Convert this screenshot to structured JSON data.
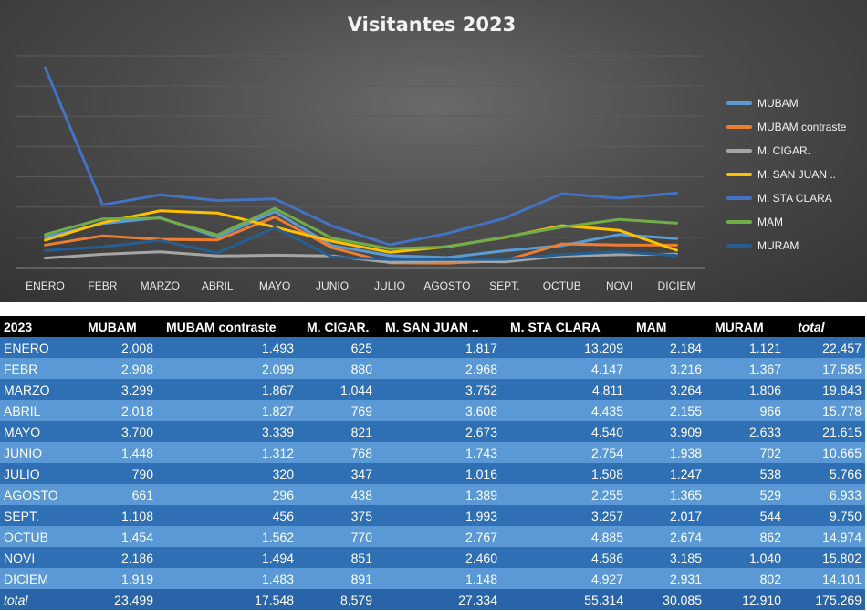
{
  "chart_data": {
    "type": "line",
    "title": "Visitantes 2023",
    "categories": [
      "ENERO",
      "FEBR",
      "MARZO",
      "ABRIL",
      "MAYO",
      "JUNIO",
      "JULIO",
      "AGOSTO",
      "SEPT.",
      "OCTUB",
      "NOVI",
      "DICIEM"
    ],
    "ylim": [
      0,
      14000
    ],
    "grid": true,
    "legend_position": "right",
    "series": [
      {
        "name": "MUBAM",
        "color": "#5b9bd5",
        "values": [
          2008,
          2908,
          3299,
          2018,
          3700,
          1448,
          790,
          661,
          1108,
          1454,
          2186,
          1919
        ]
      },
      {
        "name": "MUBAM contraste",
        "color": "#ed7d31",
        "values": [
          1493,
          2099,
          1867,
          1827,
          3339,
          1312,
          320,
          296,
          456,
          1562,
          1494,
          1483
        ]
      },
      {
        "name": "M. CIGAR.",
        "color": "#a5a5a5",
        "values": [
          625,
          880,
          1044,
          769,
          821,
          768,
          347,
          438,
          375,
          770,
          851,
          891
        ]
      },
      {
        "name": "M. SAN JUAN ..",
        "color": "#ffc000",
        "values": [
          1817,
          2968,
          3752,
          3608,
          2673,
          1743,
          1016,
          1389,
          1993,
          2767,
          2460,
          1148
        ]
      },
      {
        "name": "M. STA CLARA",
        "color": "#4472c4",
        "values": [
          13209,
          4147,
          4811,
          4435,
          4540,
          2754,
          1508,
          2255,
          3257,
          4885,
          4586,
          4927
        ]
      },
      {
        "name": "MAM",
        "color": "#70ad47",
        "values": [
          2184,
          3216,
          3264,
          2155,
          3909,
          1938,
          1247,
          1365,
          2017,
          2674,
          3185,
          2931
        ]
      },
      {
        "name": "MURAM",
        "color": "#255e91",
        "values": [
          1121,
          1367,
          1806,
          966,
          2633,
          702,
          538,
          529,
          544,
          862,
          1040,
          802
        ]
      }
    ]
  },
  "table": {
    "headers": [
      "2023",
      "MUBAM",
      "MUBAM contraste",
      "M. CIGAR.",
      "M. SAN JUAN ..",
      "M. STA CLARA",
      "MAM",
      "MURAM",
      "total"
    ],
    "rows": [
      [
        "ENERO",
        "2.008",
        "1.493",
        "625",
        "1.817",
        "13.209",
        "2.184",
        "1.121",
        "22.457"
      ],
      [
        "FEBR",
        "2.908",
        "2.099",
        "880",
        "2.968",
        "4.147",
        "3.216",
        "1.367",
        "17.585"
      ],
      [
        "MARZO",
        "3.299",
        "1.867",
        "1.044",
        "3.752",
        "4.811",
        "3.264",
        "1.806",
        "19.843"
      ],
      [
        "ABRIL",
        "2.018",
        "1.827",
        "769",
        "3.608",
        "4.435",
        "2.155",
        "966",
        "15.778"
      ],
      [
        "MAYO",
        "3.700",
        "3.339",
        "821",
        "2.673",
        "4.540",
        "3.909",
        "2.633",
        "21.615"
      ],
      [
        "JUNIO",
        "1.448",
        "1.312",
        "768",
        "1.743",
        "2.754",
        "1.938",
        "702",
        "10.665"
      ],
      [
        "JULIO",
        "790",
        "320",
        "347",
        "1.016",
        "1.508",
        "1.247",
        "538",
        "5.766"
      ],
      [
        "AGOSTO",
        "661",
        "296",
        "438",
        "1.389",
        "2.255",
        "1.365",
        "529",
        "6.933"
      ],
      [
        "SEPT.",
        "1.108",
        "456",
        "375",
        "1.993",
        "3.257",
        "2.017",
        "544",
        "9.750"
      ],
      [
        "OCTUB",
        "1.454",
        "1.562",
        "770",
        "2.767",
        "4.885",
        "2.674",
        "862",
        "14.974"
      ],
      [
        "NOVI",
        "2.186",
        "1.494",
        "851",
        "2.460",
        "4.586",
        "3.185",
        "1.040",
        "15.802"
      ],
      [
        "DICIEM",
        "1.919",
        "1.483",
        "891",
        "1.148",
        "4.927",
        "2.931",
        "802",
        "14.101"
      ]
    ],
    "totals": [
      "total",
      "23.499",
      "17.548",
      "8.579",
      "27.334",
      "55.314",
      "30.085",
      "12.910",
      "175.269"
    ]
  }
}
